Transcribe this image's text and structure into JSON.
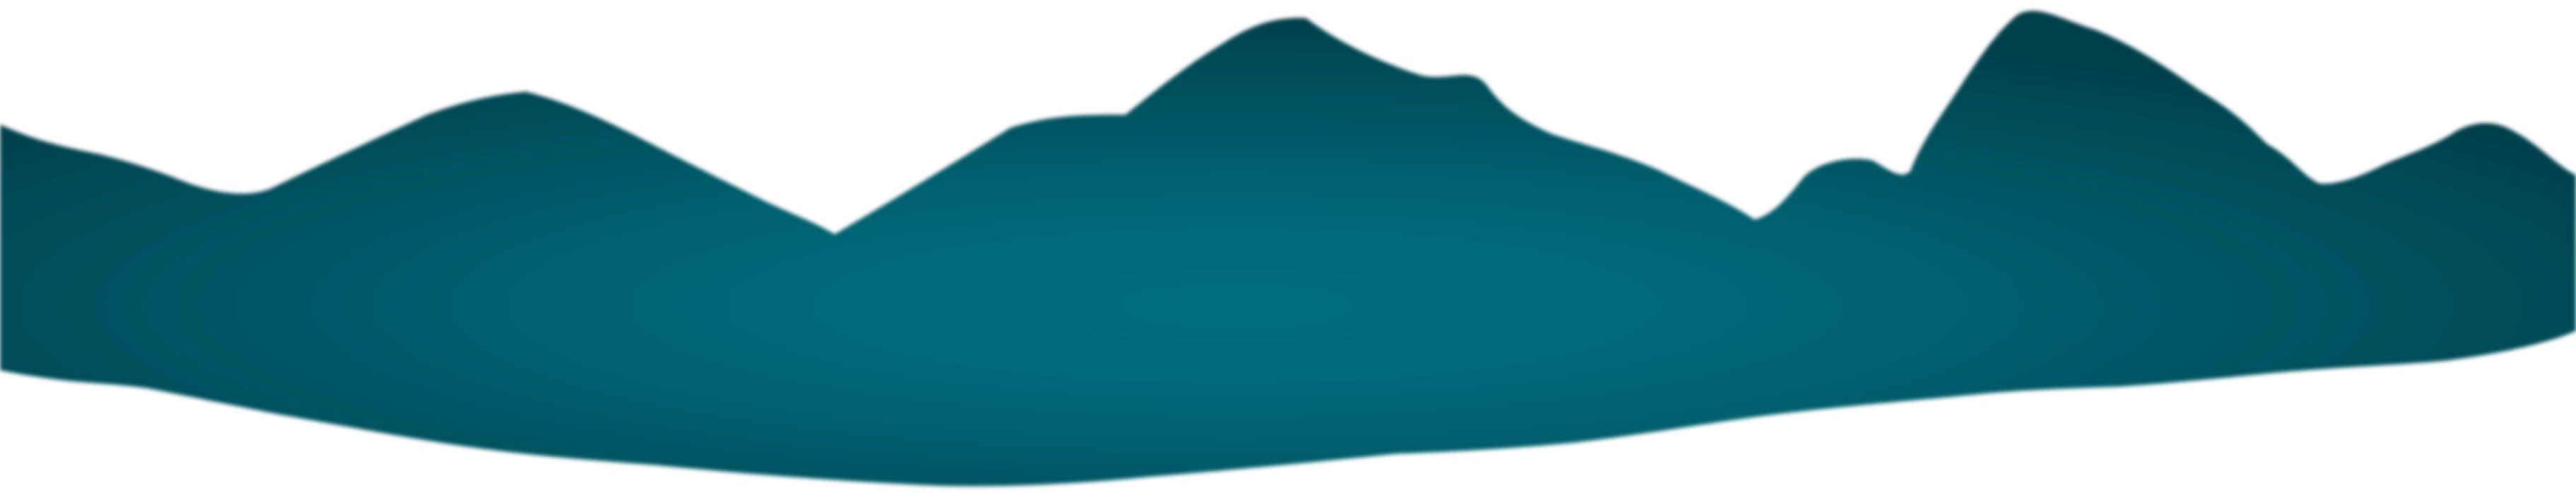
{
  "image": {
    "kind": "decorative-graphic",
    "subject": "mountain-silhouette-band",
    "colors": {
      "background": "#ffffff",
      "mountain_center": "#02707f",
      "mountain_mid": "#01606f",
      "mountain_edge": "#024b58",
      "mountain_dark": "#033f4b"
    }
  }
}
